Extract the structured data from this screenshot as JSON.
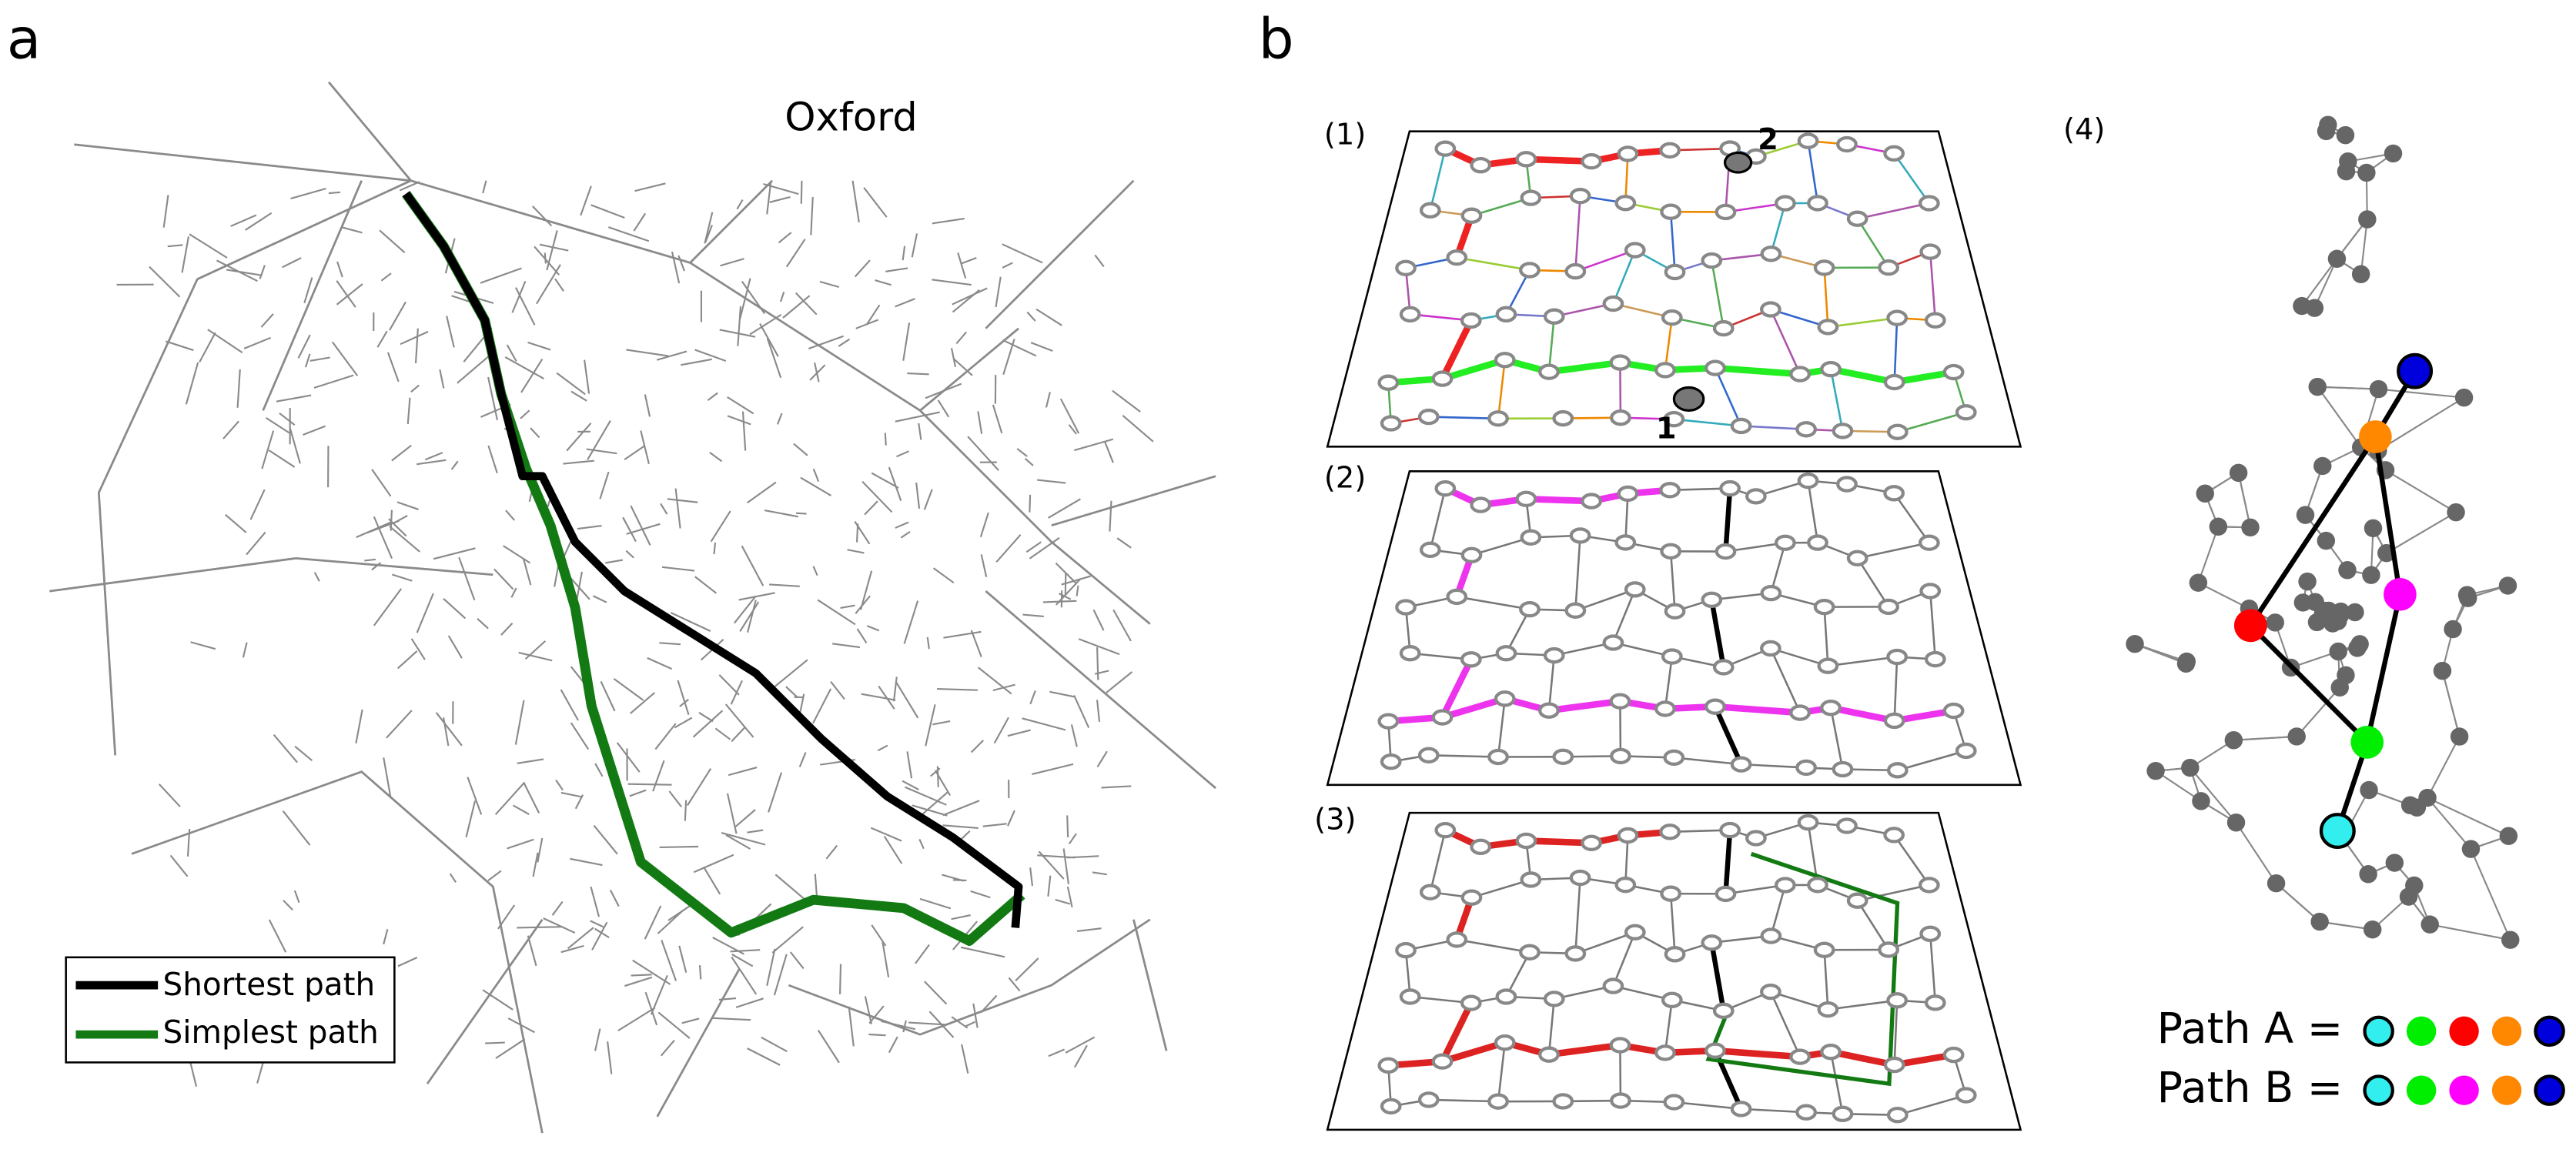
{
  "panel_a": {
    "label": "a",
    "title": "Oxford",
    "legend": [
      {
        "label": "Shortest path"
      },
      {
        "label": "Simplest path"
      }
    ]
  },
  "panel_b": {
    "label": "b",
    "sublabels": [
      "(1)",
      "(2)",
      "(3)",
      "(4)"
    ],
    "node_labels": [
      "1",
      "2"
    ],
    "paths": [
      {
        "label": "Path A ="
      },
      {
        "label": "Path B ="
      }
    ]
  }
}
